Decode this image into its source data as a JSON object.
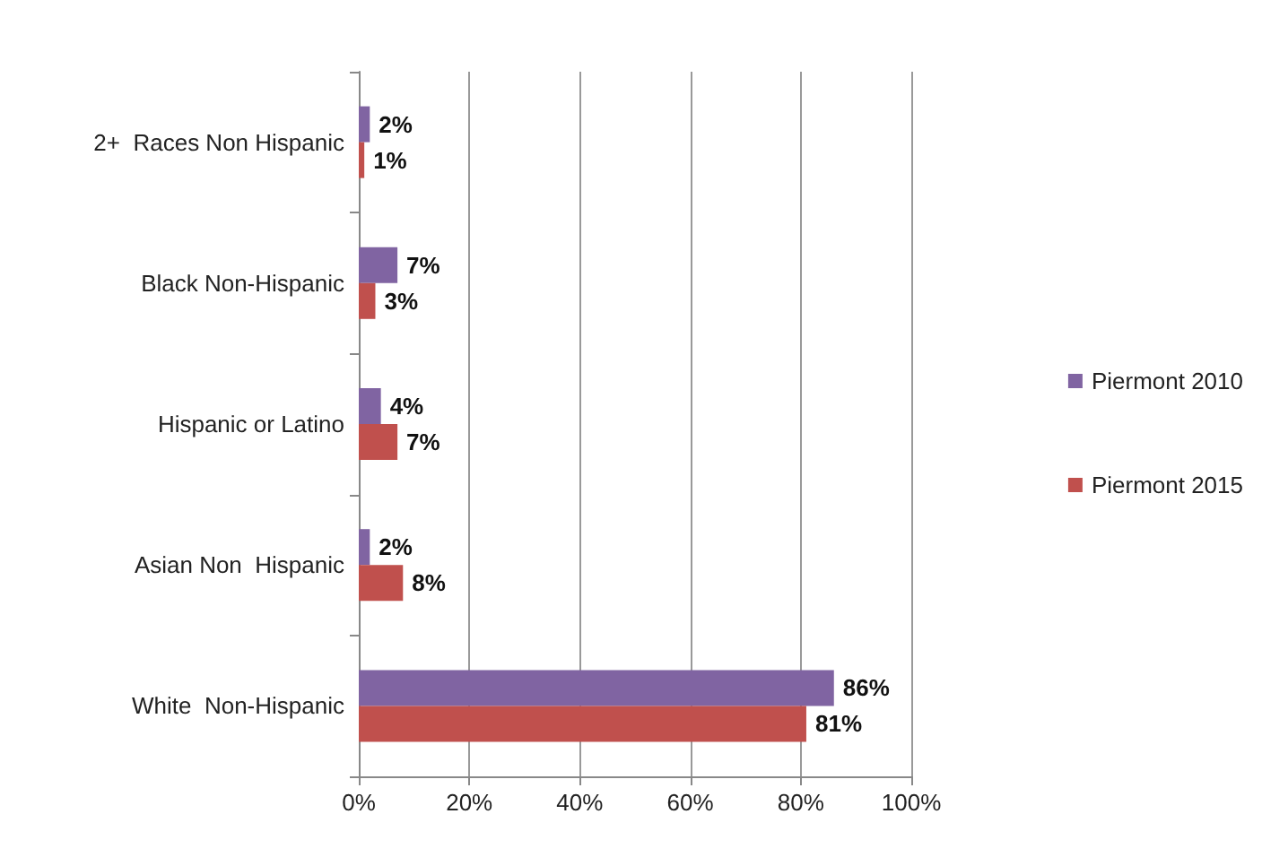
{
  "chart_data": {
    "type": "bar",
    "orientation": "horizontal",
    "categories": [
      "2+  Races Non Hispanic",
      "Black Non-Hispanic",
      "Hispanic or Latino",
      "Asian Non  Hispanic",
      "White  Non-Hispanic"
    ],
    "series": [
      {
        "name": "Piermont 2010",
        "color": "#8064a2",
        "values": [
          2,
          7,
          4,
          2,
          86
        ],
        "value_labels": [
          "2%",
          "7%",
          "4%",
          "2%",
          "86%"
        ]
      },
      {
        "name": "Piermont 2015",
        "color": "#c0504d",
        "values": [
          1,
          3,
          7,
          8,
          81
        ],
        "value_labels": [
          "1%",
          "3%",
          "7%",
          "8%",
          "81%"
        ]
      }
    ],
    "xlim": [
      0,
      100
    ],
    "xticks": [
      {
        "value": 0,
        "label": "0%"
      },
      {
        "value": 20,
        "label": "20%"
      },
      {
        "value": 40,
        "label": "40%"
      },
      {
        "value": 60,
        "label": "60%"
      },
      {
        "value": 80,
        "label": "80%"
      },
      {
        "value": 100,
        "label": "100%"
      }
    ],
    "grid": "x",
    "legend": "right"
  }
}
